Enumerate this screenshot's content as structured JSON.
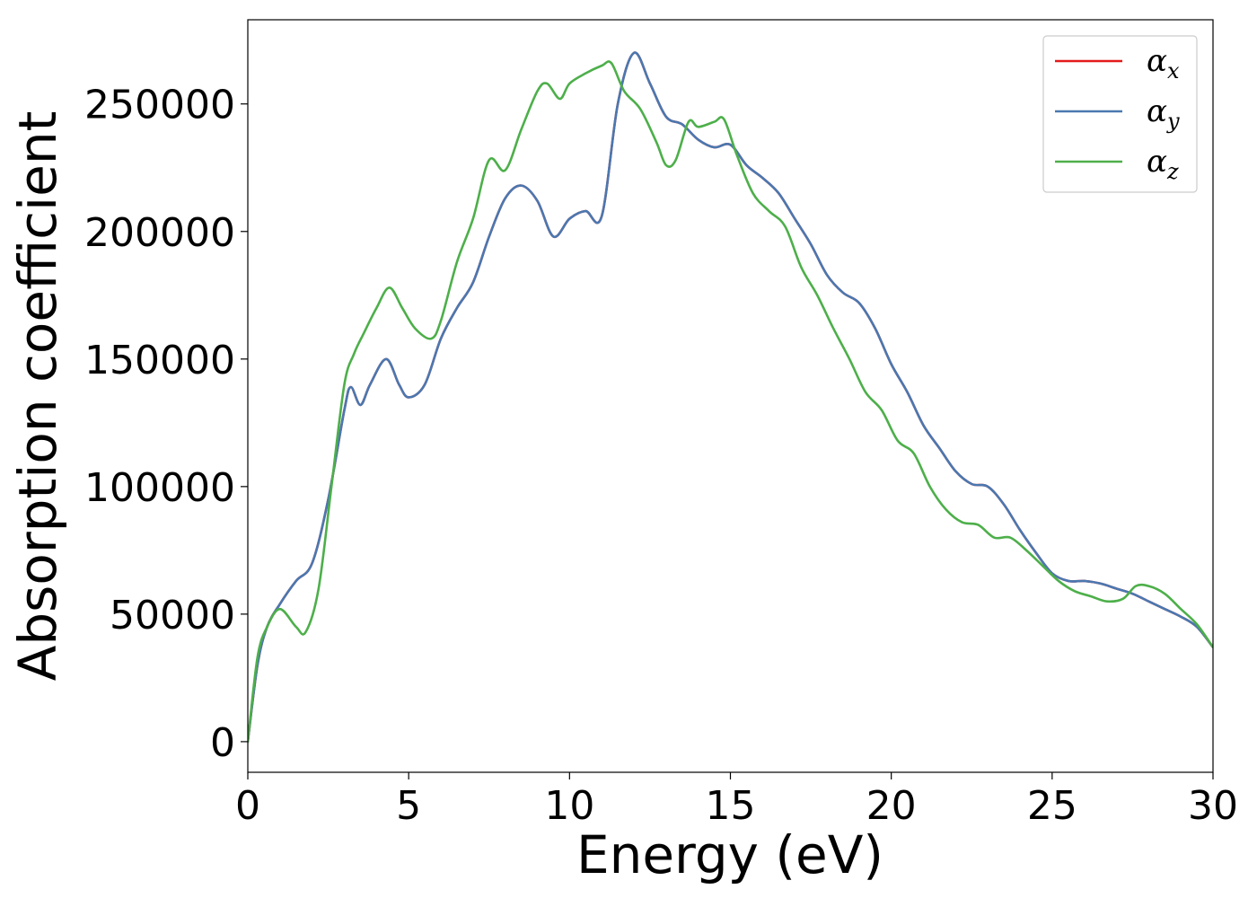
{
  "chart_data": {
    "type": "line",
    "title": "",
    "xlabel": "Energy (eV)",
    "ylabel": "Absorption coefficient",
    "xlim": [
      0,
      30
    ],
    "ylim": [
      -12000,
      283000
    ],
    "xticks": [
      0,
      5,
      10,
      15,
      20,
      25,
      30
    ],
    "yticks": [
      0,
      50000,
      100000,
      150000,
      200000,
      250000
    ],
    "grid": false,
    "legend_position": "top-right",
    "series": [
      {
        "name": "α",
        "subscript": "x",
        "color": "#e41a1c",
        "x": [
          0,
          0.3,
          0.6,
          1.0,
          1.5,
          2.0,
          2.5,
          3.0,
          3.2,
          3.5,
          3.8,
          4.3,
          4.7,
          5.0,
          5.5,
          6.0,
          6.5,
          7.0,
          7.5,
          8.0,
          8.5,
          9.0,
          9.5,
          10.0,
          10.5,
          11.0,
          11.5,
          12.0,
          12.5,
          13.0,
          13.5,
          14.0,
          14.5,
          15.0,
          15.5,
          16.0,
          16.5,
          17.0,
          17.5,
          18.0,
          18.5,
          19.0,
          19.5,
          20.0,
          20.5,
          21.0,
          21.5,
          22.0,
          22.5,
          23.0,
          23.5,
          24.0,
          24.5,
          25.0,
          25.5,
          26.0,
          26.5,
          27.0,
          27.5,
          28.0,
          28.5,
          29.0,
          29.5,
          30.0
        ],
        "y": [
          0,
          30000,
          45000,
          54000,
          63000,
          70000,
          95000,
          130000,
          139000,
          132000,
          140000,
          150000,
          140000,
          135000,
          140000,
          158000,
          170000,
          180000,
          198000,
          213000,
          218000,
          212000,
          198000,
          205000,
          208000,
          206000,
          250000,
          270000,
          258000,
          245000,
          242000,
          236000,
          233000,
          234000,
          226000,
          221000,
          215000,
          205000,
          195000,
          183000,
          176000,
          172000,
          162000,
          148000,
          137000,
          124000,
          115000,
          106000,
          101000,
          100000,
          93000,
          83000,
          74000,
          66000,
          63000,
          63000,
          62000,
          60000,
          58000,
          55000,
          52000,
          49000,
          45000,
          37000
        ]
      },
      {
        "name": "α",
        "subscript": "y",
        "color": "#4a78b0",
        "x": [
          0,
          0.3,
          0.6,
          1.0,
          1.5,
          2.0,
          2.5,
          3.0,
          3.2,
          3.5,
          3.8,
          4.3,
          4.7,
          5.0,
          5.5,
          6.0,
          6.5,
          7.0,
          7.5,
          8.0,
          8.5,
          9.0,
          9.5,
          10.0,
          10.5,
          11.0,
          11.5,
          12.0,
          12.5,
          13.0,
          13.5,
          14.0,
          14.5,
          15.0,
          15.5,
          16.0,
          16.5,
          17.0,
          17.5,
          18.0,
          18.5,
          19.0,
          19.5,
          20.0,
          20.5,
          21.0,
          21.5,
          22.0,
          22.5,
          23.0,
          23.5,
          24.0,
          24.5,
          25.0,
          25.5,
          26.0,
          26.5,
          27.0,
          27.5,
          28.0,
          28.5,
          29.0,
          29.5,
          30.0
        ],
        "y": [
          0,
          30000,
          45000,
          54000,
          63000,
          70000,
          95000,
          130000,
          139000,
          132000,
          140000,
          150000,
          140000,
          135000,
          140000,
          158000,
          170000,
          180000,
          198000,
          213000,
          218000,
          212000,
          198000,
          205000,
          208000,
          206000,
          250000,
          270000,
          258000,
          245000,
          242000,
          236000,
          233000,
          234000,
          226000,
          221000,
          215000,
          205000,
          195000,
          183000,
          176000,
          172000,
          162000,
          148000,
          137000,
          124000,
          115000,
          106000,
          101000,
          100000,
          93000,
          83000,
          74000,
          66000,
          63000,
          63000,
          62000,
          60000,
          58000,
          55000,
          52000,
          49000,
          45000,
          37000
        ]
      },
      {
        "name": "α",
        "subscript": "z",
        "color": "#4daf4a",
        "x": [
          0,
          0.3,
          0.6,
          1.0,
          1.5,
          1.8,
          2.2,
          2.6,
          3.0,
          3.3,
          3.6,
          4.0,
          4.4,
          4.8,
          5.2,
          5.7,
          6.0,
          6.5,
          7.0,
          7.5,
          8.0,
          8.5,
          9.0,
          9.3,
          9.7,
          10.0,
          10.5,
          11.0,
          11.3,
          11.7,
          12.2,
          12.7,
          13.0,
          13.3,
          13.7,
          14.0,
          14.5,
          14.8,
          15.2,
          15.7,
          16.2,
          16.7,
          17.2,
          17.7,
          18.2,
          18.7,
          19.2,
          19.7,
          20.2,
          20.7,
          21.2,
          21.7,
          22.2,
          22.7,
          23.2,
          23.7,
          24.2,
          24.7,
          25.2,
          25.7,
          26.2,
          26.7,
          27.2,
          27.6,
          28.0,
          28.5,
          29.0,
          29.5,
          30.0
        ],
        "y": [
          0,
          33000,
          45000,
          52000,
          45000,
          43000,
          60000,
          100000,
          140000,
          152000,
          160000,
          170000,
          178000,
          170000,
          162000,
          158000,
          165000,
          188000,
          205000,
          228000,
          224000,
          240000,
          255000,
          258000,
          252000,
          258000,
          262000,
          265000,
          266000,
          255000,
          248000,
          235000,
          226000,
          228000,
          243000,
          241000,
          243000,
          244000,
          230000,
          215000,
          208000,
          202000,
          186000,
          175000,
          162000,
          150000,
          137000,
          130000,
          118000,
          113000,
          100000,
          91000,
          86000,
          85000,
          80000,
          80000,
          75000,
          69000,
          63000,
          59000,
          57000,
          55000,
          56000,
          61000,
          61000,
          58000,
          52000,
          46000,
          37000
        ]
      }
    ]
  }
}
